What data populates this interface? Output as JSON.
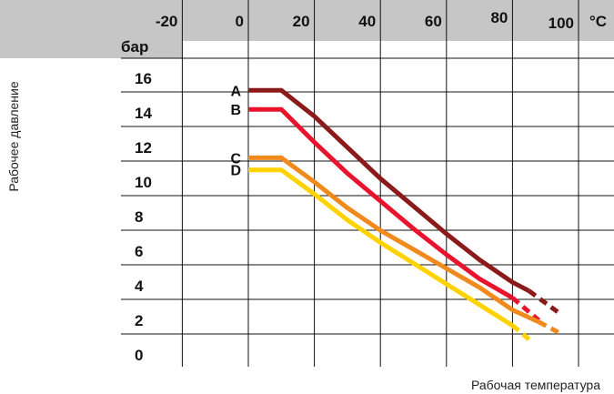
{
  "chart_data": {
    "type": "line",
    "xlabel": "Рабочая температура",
    "ylabel": "Рабочее давление",
    "x_unit": "°C",
    "y_unit": "бар",
    "xlim": [
      -20,
      100
    ],
    "ylim": [
      0,
      16
    ],
    "x_ticks": [
      "-20",
      "0",
      "20",
      "40",
      "60",
      "80",
      "100"
    ],
    "y_ticks": [
      "16",
      "14",
      "12",
      "10",
      "8",
      "6",
      "4",
      "2",
      "0"
    ],
    "grid": true,
    "series": [
      {
        "name": "A",
        "color": "#8b1a1a",
        "x": [
          0,
          10,
          20,
          30,
          40,
          50,
          60,
          70,
          80,
          85
        ],
        "y": [
          15.3,
          15.3,
          13.8,
          12.0,
          10.2,
          8.6,
          7.0,
          5.5,
          4.2,
          3.7
        ],
        "dashed_x": [
          85,
          95
        ],
        "dashed_y": [
          3.7,
          2.3
        ]
      },
      {
        "name": "B",
        "color": "#e8142e",
        "x": [
          0,
          10,
          20,
          30,
          40,
          50,
          60,
          70,
          80
        ],
        "y": [
          14.2,
          14.2,
          12.3,
          10.5,
          8.9,
          7.3,
          5.8,
          4.4,
          3.3
        ],
        "dashed_x": [
          80,
          88
        ],
        "dashed_y": [
          3.3,
          2.0
        ]
      },
      {
        "name": "C",
        "color": "#f08a1c",
        "x": [
          0,
          10,
          20,
          30,
          40,
          50,
          60,
          70,
          80,
          88
        ],
        "y": [
          11.4,
          11.4,
          10.0,
          8.5,
          7.2,
          6.1,
          5.0,
          3.9,
          2.6,
          1.9
        ],
        "dashed_x": [
          88,
          95
        ],
        "dashed_y": [
          1.9,
          1.2
        ]
      },
      {
        "name": "D",
        "color": "#ffd200",
        "x": [
          0,
          10,
          20,
          30,
          40,
          50,
          60,
          70,
          80
        ],
        "y": [
          10.7,
          10.7,
          9.3,
          7.8,
          6.5,
          5.3,
          4.1,
          2.9,
          1.7
        ],
        "dashed_x": [
          80,
          85
        ],
        "dashed_y": [
          1.7,
          0.9
        ]
      }
    ]
  }
}
